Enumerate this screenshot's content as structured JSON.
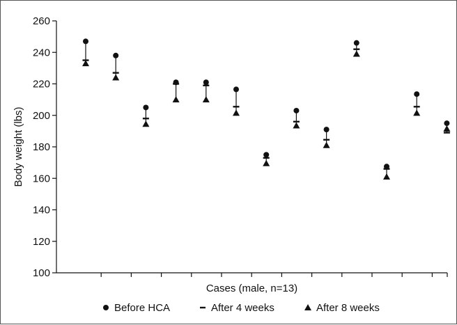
{
  "chart_data": {
    "type": "scatter",
    "title": "",
    "xlabel": "Cases (male, n=13)",
    "ylabel": "Body weight (lbs)",
    "ylim": [
      100,
      260
    ],
    "yticks": [
      100,
      120,
      140,
      160,
      180,
      200,
      220,
      240,
      260
    ],
    "grid": false,
    "legend_position": "bottom",
    "x": [
      1,
      2,
      3,
      4,
      5,
      6,
      7,
      8,
      9,
      10,
      11,
      12,
      13
    ],
    "series": [
      {
        "name": "Before HCA",
        "marker": "circle",
        "values": [
          247,
          238,
          205,
          221,
          221,
          216.5,
          175,
          203,
          191,
          246,
          167.5,
          213.5,
          195
        ]
      },
      {
        "name": "After 4 weeks",
        "marker": "dash",
        "values": [
          235,
          227,
          198,
          220,
          219,
          205.5,
          173,
          196,
          184.5,
          242,
          166,
          205.5,
          189
        ]
      },
      {
        "name": "After 8 weeks",
        "marker": "triangle",
        "values": [
          233,
          224,
          194.5,
          210,
          210,
          201.5,
          169.5,
          193.5,
          181,
          239,
          161,
          201.5,
          191.5
        ]
      }
    ]
  }
}
